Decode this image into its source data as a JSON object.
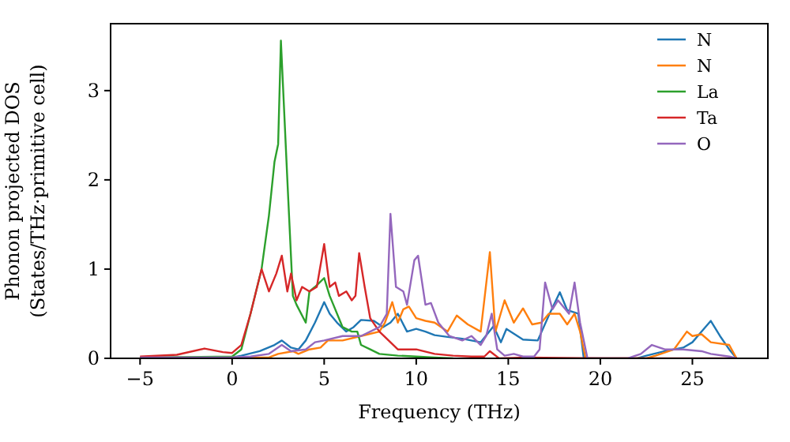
{
  "chart_data": {
    "type": "line",
    "xlabel": "Frequency (THz)",
    "ylabel": "Phonon projected DOS\n(States/THz·primitive cell)",
    "xlim": [
      -6.6,
      29.1
    ],
    "ylim": [
      0,
      3.75
    ],
    "xticks": [
      -5,
      0,
      5,
      10,
      15,
      20,
      25
    ],
    "yticks": [
      0,
      1,
      2,
      3
    ],
    "grid": false,
    "legend": "top right",
    "marker": "none",
    "line_style": "solid",
    "series": [
      {
        "name": "N",
        "color": "#1f77b4",
        "x": [
          -5,
          -2,
          0,
          0.5,
          1.5,
          2.3,
          2.7,
          3.2,
          3.6,
          4.0,
          4.5,
          5.0,
          5.3,
          5.7,
          6.2,
          6.6,
          7.0,
          7.7,
          8.2,
          8.6,
          9.0,
          9.5,
          10,
          10.5,
          11,
          11.7,
          12.5,
          13.5,
          14.2,
          14.6,
          14.9,
          15.8,
          16.6,
          17.2,
          17.8,
          18.2,
          18.8,
          19.1,
          20,
          22,
          22.5,
          23.5,
          24.5,
          25,
          25.5,
          26,
          26.5,
          27,
          27.4
        ],
        "values": [
          0.01,
          0.01,
          0.01,
          0.03,
          0.08,
          0.15,
          0.2,
          0.12,
          0.1,
          0.2,
          0.4,
          0.63,
          0.5,
          0.4,
          0.3,
          0.35,
          0.43,
          0.42,
          0.35,
          0.4,
          0.5,
          0.3,
          0.33,
          0.3,
          0.26,
          0.24,
          0.22,
          0.18,
          0.36,
          0.18,
          0.33,
          0.21,
          0.2,
          0.48,
          0.74,
          0.54,
          0.5,
          0,
          0,
          0,
          0.03,
          0.08,
          0.12,
          0.18,
          0.3,
          0.42,
          0.25,
          0.1,
          0
        ]
      },
      {
        "name": "N",
        "color": "#ff7f0e",
        "x": [
          -5,
          0,
          2,
          2.5,
          3.3,
          3.6,
          4.2,
          4.8,
          5.2,
          6,
          7,
          8,
          8.3,
          8.7,
          9.0,
          9.3,
          9.6,
          10,
          10.5,
          11,
          11.7,
          12.2,
          12.8,
          13.5,
          14.0,
          14.3,
          14.8,
          15.3,
          15.8,
          16.3,
          16.8,
          17.2,
          17.8,
          18.2,
          18.6,
          18.9,
          19.2,
          20,
          22.5,
          23,
          24,
          24.7,
          25.0,
          25.5,
          26,
          27,
          27.4
        ],
        "values": [
          0.01,
          0.01,
          0.01,
          0.05,
          0.08,
          0.05,
          0.1,
          0.12,
          0.2,
          0.2,
          0.25,
          0.3,
          0.4,
          0.63,
          0.4,
          0.55,
          0.58,
          0.45,
          0.42,
          0.4,
          0.3,
          0.48,
          0.38,
          0.3,
          1.19,
          0.3,
          0.65,
          0.4,
          0.56,
          0.38,
          0.4,
          0.5,
          0.5,
          0.38,
          0.5,
          0.3,
          0,
          0,
          0,
          0.03,
          0.1,
          0.3,
          0.25,
          0.27,
          0.18,
          0.15,
          0
        ]
      },
      {
        "name": "La",
        "color": "#2ca02c",
        "x": [
          -5,
          0,
          0.5,
          1.0,
          1.6,
          2.0,
          2.3,
          2.5,
          2.65,
          3.0,
          3.3,
          3.5,
          4.0,
          4.2,
          4.5,
          5.0,
          5.3,
          5.5,
          6.0,
          6.5,
          6.8,
          7.0,
          7.5,
          8,
          9,
          10,
          11,
          12
        ],
        "values": [
          0.01,
          0.02,
          0.1,
          0.5,
          1.0,
          1.6,
          2.2,
          2.4,
          3.56,
          2.0,
          0.7,
          0.6,
          0.4,
          0.75,
          0.8,
          0.9,
          0.7,
          0.6,
          0.35,
          0.3,
          0.3,
          0.15,
          0.1,
          0.05,
          0.03,
          0.02,
          0.01,
          0
        ]
      },
      {
        "name": "Ta",
        "color": "#d62728",
        "x": [
          -5,
          -3,
          -1.5,
          -0.5,
          0,
          0.5,
          1.0,
          1.6,
          2.0,
          2.4,
          2.7,
          3.0,
          3.2,
          3.5,
          3.8,
          4.2,
          4.6,
          5.0,
          5.3,
          5.6,
          5.8,
          6.2,
          6.5,
          6.7,
          6.9,
          7.2,
          7.5,
          8,
          8.5,
          9,
          10,
          11,
          12,
          13,
          13.7,
          14,
          14.5,
          16,
          20,
          27.4
        ],
        "values": [
          0.02,
          0.04,
          0.11,
          0.07,
          0.06,
          0.15,
          0.5,
          1.0,
          0.75,
          0.95,
          1.15,
          0.75,
          0.95,
          0.65,
          0.8,
          0.75,
          0.8,
          1.28,
          0.8,
          0.85,
          0.7,
          0.75,
          0.65,
          0.7,
          1.18,
          0.8,
          0.45,
          0.3,
          0.2,
          0.1,
          0.1,
          0.05,
          0.03,
          0.02,
          0.02,
          0.08,
          0,
          0.01,
          0,
          0
        ]
      },
      {
        "name": "O",
        "color": "#9467bd",
        "x": [
          -5,
          0,
          1,
          2,
          2.7,
          3.2,
          4,
          4.5,
          5.0,
          6,
          7,
          7.5,
          8,
          8.4,
          8.6,
          8.9,
          9.3,
          9.5,
          9.9,
          10.1,
          10.5,
          10.8,
          11.2,
          11.8,
          12.5,
          13,
          13.5,
          13.8,
          14.1,
          14.4,
          14.8,
          15.3,
          15.8,
          16.4,
          16.7,
          17.0,
          17.4,
          17.7,
          18.1,
          18.3,
          18.6,
          18.9,
          19.3,
          21.5,
          22.2,
          22.8,
          23.5,
          24.5,
          25.5,
          26,
          27,
          27.4
        ],
        "values": [
          0.01,
          0.01,
          0.02,
          0.05,
          0.15,
          0.08,
          0.1,
          0.18,
          0.2,
          0.25,
          0.25,
          0.3,
          0.35,
          0.5,
          1.62,
          0.8,
          0.75,
          0.6,
          1.1,
          1.15,
          0.6,
          0.62,
          0.4,
          0.25,
          0.2,
          0.25,
          0.15,
          0.25,
          0.5,
          0.1,
          0.03,
          0.05,
          0.02,
          0.02,
          0.1,
          0.85,
          0.55,
          0.65,
          0.55,
          0.5,
          0.85,
          0.4,
          0,
          0,
          0.05,
          0.15,
          0.1,
          0.1,
          0.08,
          0.05,
          0.02,
          0
        ]
      }
    ]
  }
}
